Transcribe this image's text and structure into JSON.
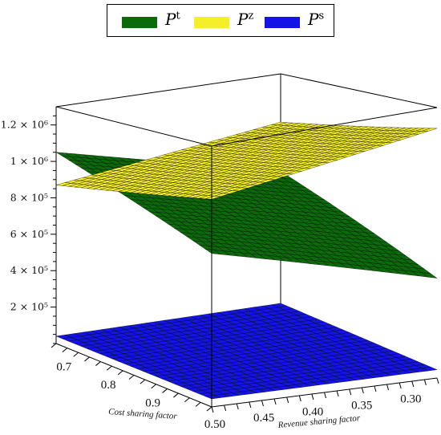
{
  "legend": [
    {
      "base": "P",
      "sup": "t",
      "color": "#0b6b0b"
    },
    {
      "base": "P",
      "sup": "z",
      "color": "#f5ef2a"
    },
    {
      "base": "P",
      "sup": "s",
      "color": "#1414e6"
    }
  ],
  "chart_data": {
    "type": "surface3d",
    "xlabel": "Cost sharing factor",
    "ylabel": "Revenue sharing factor",
    "zlabel": "",
    "x_ticks": [
      "0.7",
      "0.8",
      "0.9"
    ],
    "y_ticks": [
      "0.50",
      "0.45",
      "0.40",
      "0.35",
      "0.30"
    ],
    "z_ticks": [
      {
        "value": 200000,
        "label": "2 × 10⁵"
      },
      {
        "value": 400000,
        "label": "4 × 10⁵"
      },
      {
        "value": 600000,
        "label": "6 × 10⁵"
      },
      {
        "value": 800000,
        "label": "8 × 10⁵"
      },
      {
        "value": 1000000,
        "label": "1 × 10⁶"
      },
      {
        "value": 1200000,
        "label": "1.2 × 10⁶"
      }
    ],
    "series": [
      {
        "name": "Pt",
        "color": "#0b6b0b",
        "corners_z": {
          "x_min_y_max": 1050000,
          "x_max_y_min": 480000
        }
      },
      {
        "name": "Pz",
        "color": "#f5ef2a",
        "corners_z": {
          "x_min_y_max": 870000,
          "x_max_y_min": 1200000
        }
      },
      {
        "name": "Ps",
        "color": "#1414e6",
        "corners_z": {
          "x_min_y_max": 40000,
          "x_max_y_min": 40000
        }
      }
    ]
  }
}
